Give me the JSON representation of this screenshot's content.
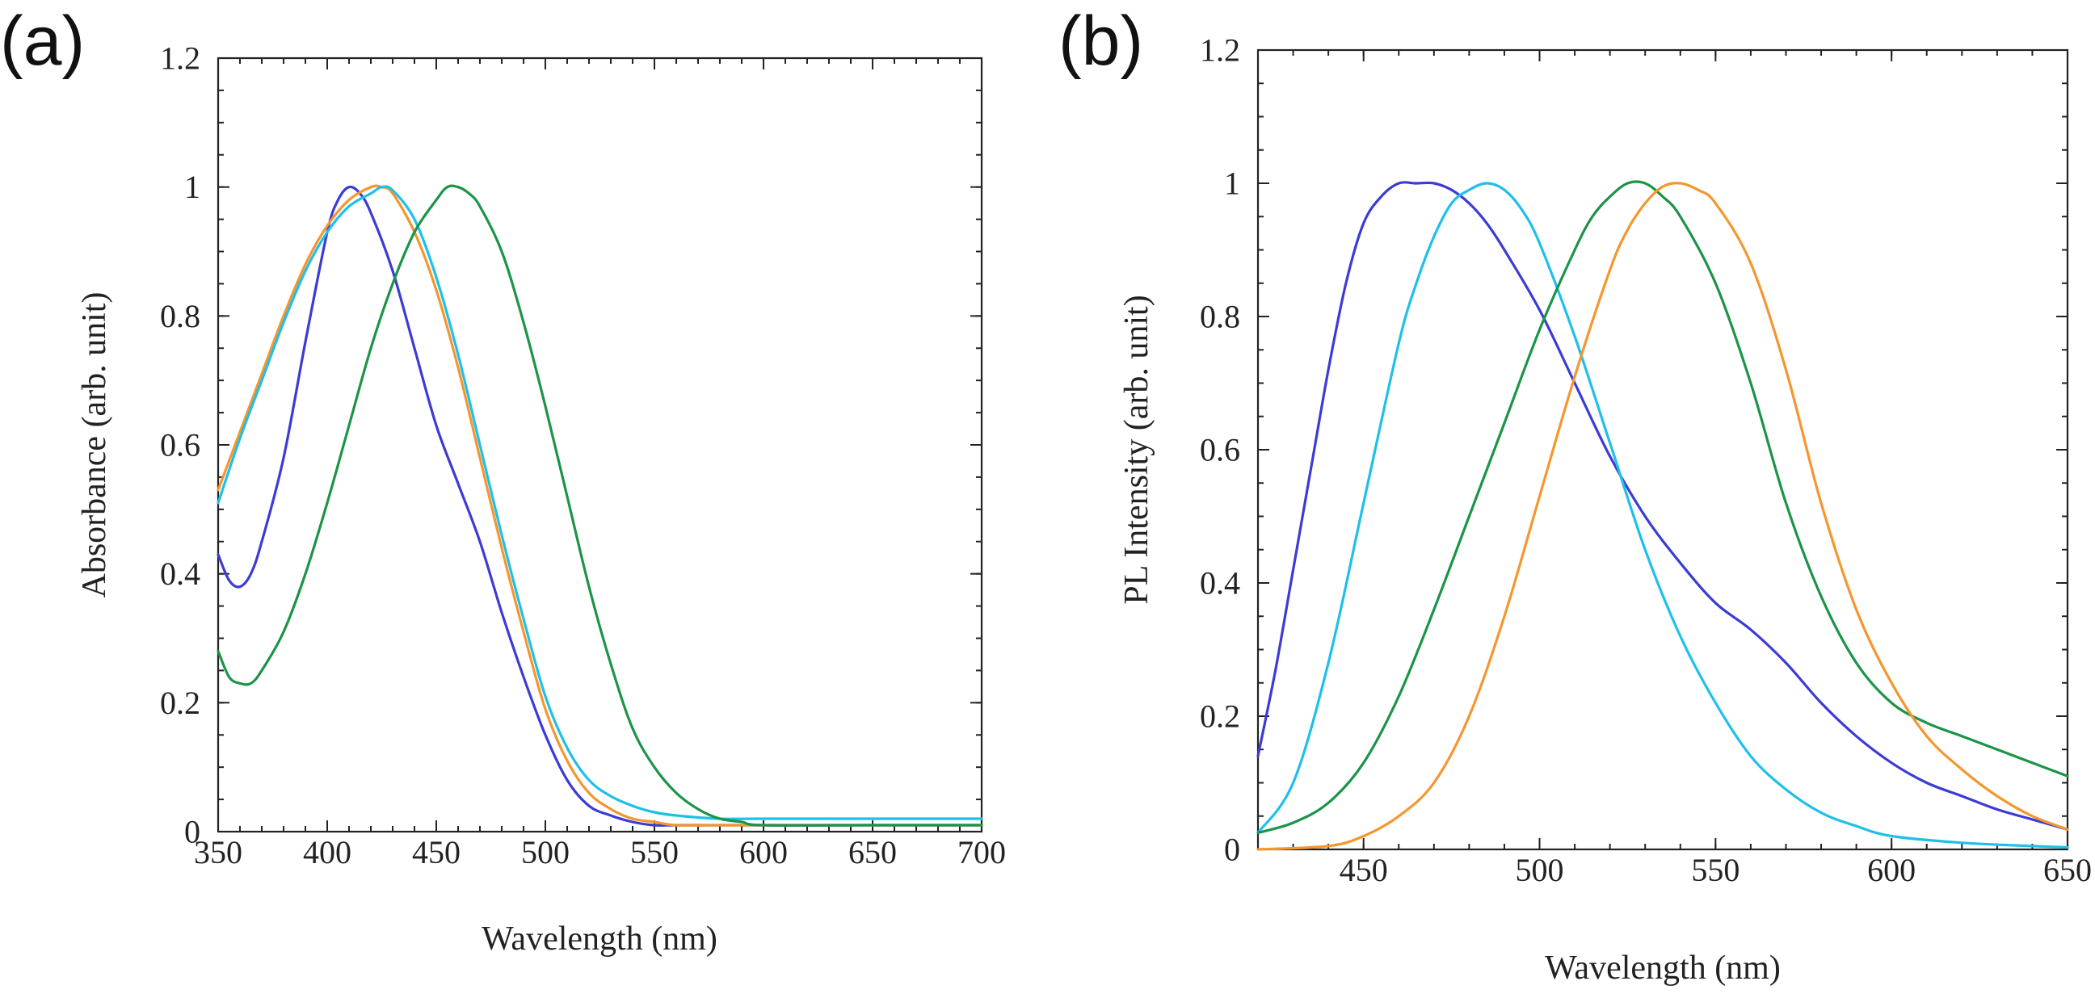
{
  "chart_data": [
    {
      "panel_label": "(a)",
      "type": "line",
      "title": "",
      "xlabel": "Wavelength (nm)",
      "ylabel": "Absorbance (arb. unit)",
      "xlim": [
        350,
        700
      ],
      "ylim": [
        0,
        1.2
      ],
      "xticks": [
        350,
        400,
        450,
        500,
        550,
        600,
        650,
        700
      ],
      "yticks": [
        0,
        0.2,
        0.4,
        0.6,
        0.8,
        1,
        1.2
      ],
      "xtick_labels": [
        "350",
        "400",
        "450",
        "500",
        "550",
        "600",
        "650",
        "700"
      ],
      "ytick_labels": [
        "0",
        "0.2",
        "0.4",
        "0.6",
        "0.8",
        "1",
        "1.2"
      ],
      "grid": false,
      "series": [
        {
          "name": "blue",
          "color": "#3b3bd6",
          "x": [
            350,
            355,
            360,
            365,
            370,
            380,
            390,
            400,
            405,
            410,
            415,
            420,
            430,
            440,
            450,
            460,
            470,
            480,
            490,
            500,
            510,
            520,
            530,
            540,
            550,
            560,
            580,
            600,
            650,
            700
          ],
          "y": [
            0.43,
            0.39,
            0.38,
            0.4,
            0.45,
            0.58,
            0.76,
            0.93,
            0.98,
            1.0,
            0.99,
            0.96,
            0.87,
            0.75,
            0.63,
            0.54,
            0.45,
            0.34,
            0.24,
            0.15,
            0.08,
            0.04,
            0.025,
            0.015,
            0.01,
            0.01,
            0.01,
            0.01,
            0.01,
            0.01
          ]
        },
        {
          "name": "orange",
          "color": "#f5962e",
          "x": [
            350,
            360,
            370,
            380,
            390,
            400,
            410,
            420,
            425,
            430,
            440,
            450,
            460,
            470,
            480,
            490,
            500,
            510,
            520,
            530,
            540,
            550,
            560,
            580,
            600,
            650,
            700
          ],
          "y": [
            0.53,
            0.62,
            0.71,
            0.8,
            0.88,
            0.94,
            0.98,
            1.0,
            1.0,
            0.99,
            0.93,
            0.84,
            0.72,
            0.58,
            0.44,
            0.31,
            0.19,
            0.11,
            0.06,
            0.035,
            0.02,
            0.015,
            0.01,
            0.01,
            0.01,
            0.01,
            0.01
          ]
        },
        {
          "name": "cyan",
          "color": "#1ec0ea",
          "x": [
            350,
            360,
            370,
            380,
            390,
            400,
            410,
            420,
            425,
            430,
            440,
            450,
            460,
            470,
            480,
            490,
            500,
            510,
            520,
            530,
            540,
            550,
            560,
            580,
            600,
            650,
            700
          ],
          "y": [
            0.51,
            0.61,
            0.7,
            0.79,
            0.87,
            0.93,
            0.97,
            0.99,
            1.0,
            0.995,
            0.95,
            0.86,
            0.74,
            0.6,
            0.46,
            0.33,
            0.21,
            0.13,
            0.08,
            0.055,
            0.04,
            0.03,
            0.025,
            0.02,
            0.02,
            0.02,
            0.02
          ]
        },
        {
          "name": "green",
          "color": "#1b9448",
          "x": [
            350,
            355,
            360,
            365,
            370,
            380,
            390,
            400,
            410,
            420,
            430,
            440,
            450,
            455,
            460,
            465,
            470,
            480,
            490,
            500,
            510,
            520,
            530,
            540,
            550,
            560,
            570,
            580,
            590,
            600,
            650,
            700
          ],
          "y": [
            0.28,
            0.24,
            0.23,
            0.23,
            0.25,
            0.31,
            0.4,
            0.51,
            0.63,
            0.75,
            0.85,
            0.93,
            0.98,
            1.0,
            1.0,
            0.99,
            0.97,
            0.9,
            0.79,
            0.66,
            0.52,
            0.38,
            0.26,
            0.16,
            0.1,
            0.06,
            0.035,
            0.02,
            0.015,
            0.01,
            0.01,
            0.01
          ]
        }
      ]
    },
    {
      "panel_label": "(b)",
      "type": "line",
      "title": "",
      "xlabel": "Wavelength (nm)",
      "ylabel": "PL Intensity (arb. unit)",
      "xlim": [
        420,
        650
      ],
      "ylim": [
        0,
        1.2
      ],
      "xticks": [
        450,
        500,
        550,
        600,
        650
      ],
      "yticks": [
        0,
        0.2,
        0.4,
        0.6,
        0.8,
        1,
        1.2
      ],
      "xtick_labels": [
        "450",
        "500",
        "550",
        "600",
        "650"
      ],
      "ytick_labels": [
        "0",
        "0.2",
        "0.4",
        "0.6",
        "0.8",
        "1",
        "1.2"
      ],
      "grid": false,
      "series": [
        {
          "name": "blue",
          "color": "#3b3bd6",
          "x": [
            420,
            425,
            430,
            435,
            440,
            445,
            450,
            455,
            460,
            465,
            470,
            475,
            480,
            485,
            490,
            500,
            510,
            520,
            530,
            540,
            550,
            560,
            570,
            580,
            590,
            600,
            610,
            620,
            630,
            640,
            650
          ],
          "y": [
            0.14,
            0.27,
            0.42,
            0.57,
            0.72,
            0.85,
            0.94,
            0.98,
            1.0,
            1.0,
            1.0,
            0.99,
            0.97,
            0.94,
            0.9,
            0.81,
            0.7,
            0.59,
            0.5,
            0.43,
            0.37,
            0.33,
            0.28,
            0.22,
            0.17,
            0.13,
            0.1,
            0.08,
            0.06,
            0.045,
            0.03
          ]
        },
        {
          "name": "cyan",
          "color": "#1ec0ea",
          "x": [
            420,
            430,
            440,
            450,
            460,
            465,
            470,
            475,
            480,
            485,
            490,
            495,
            500,
            510,
            520,
            530,
            540,
            550,
            560,
            570,
            580,
            590,
            600,
            620,
            640,
            650
          ],
          "y": [
            0.025,
            0.1,
            0.28,
            0.52,
            0.76,
            0.85,
            0.92,
            0.97,
            0.99,
            1.0,
            0.99,
            0.96,
            0.91,
            0.77,
            0.61,
            0.45,
            0.32,
            0.22,
            0.14,
            0.09,
            0.055,
            0.035,
            0.02,
            0.01,
            0.005,
            0.003
          ]
        },
        {
          "name": "green",
          "color": "#1b9448",
          "x": [
            420,
            430,
            440,
            450,
            460,
            470,
            480,
            490,
            500,
            510,
            515,
            520,
            525,
            530,
            535,
            540,
            550,
            560,
            570,
            580,
            590,
            600,
            610,
            620,
            630,
            640,
            650
          ],
          "y": [
            0.025,
            0.04,
            0.07,
            0.13,
            0.23,
            0.36,
            0.5,
            0.64,
            0.78,
            0.9,
            0.95,
            0.98,
            1.0,
            1.0,
            0.98,
            0.95,
            0.85,
            0.7,
            0.52,
            0.38,
            0.28,
            0.22,
            0.19,
            0.17,
            0.15,
            0.13,
            0.11
          ]
        },
        {
          "name": "orange",
          "color": "#f5962e",
          "x": [
            420,
            440,
            450,
            460,
            470,
            480,
            490,
            500,
            510,
            520,
            525,
            530,
            535,
            540,
            545,
            550,
            560,
            570,
            580,
            590,
            600,
            610,
            620,
            630,
            640,
            650
          ],
          "y": [
            0.0,
            0.005,
            0.02,
            0.05,
            0.1,
            0.2,
            0.35,
            0.53,
            0.71,
            0.87,
            0.93,
            0.97,
            0.995,
            1.0,
            0.99,
            0.97,
            0.88,
            0.72,
            0.52,
            0.36,
            0.25,
            0.17,
            0.12,
            0.08,
            0.05,
            0.03
          ]
        }
      ]
    }
  ]
}
